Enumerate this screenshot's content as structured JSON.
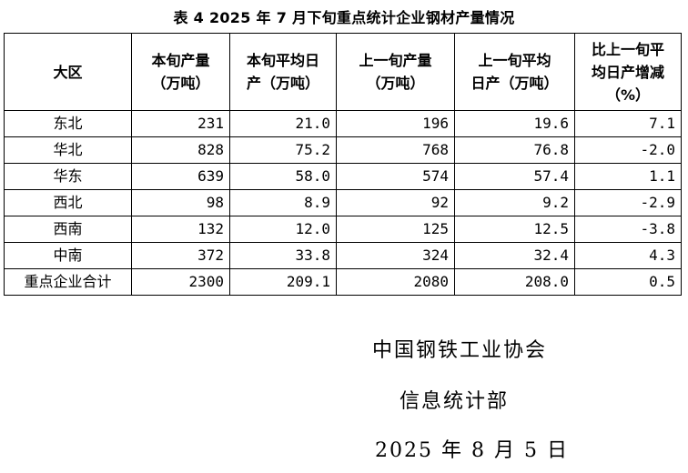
{
  "title": "表 4   2025 年 7 月下旬重点统计企业钢材产量情况",
  "table": {
    "headers": [
      {
        "line1": "大区",
        "line2": ""
      },
      {
        "line1": "本旬产量",
        "line2": "（万吨）"
      },
      {
        "line1": "本旬平均日",
        "line2": "产（万吨）"
      },
      {
        "line1": "上一旬产量",
        "line2": "（万吨）"
      },
      {
        "line1": "上一旬平均",
        "line2": "日产（万吨）"
      },
      {
        "line1": "比上一旬平",
        "line2": "均日产增减",
        "line3": "（%）"
      }
    ],
    "rows": [
      {
        "region": "东北",
        "cur": "231",
        "cur_avg": "21.0",
        "prev": "196",
        "prev_avg": "19.6",
        "change": "7.1"
      },
      {
        "region": "华北",
        "cur": "828",
        "cur_avg": "75.2",
        "prev": "768",
        "prev_avg": "76.8",
        "change": "-2.0"
      },
      {
        "region": "华东",
        "cur": "639",
        "cur_avg": "58.0",
        "prev": "574",
        "prev_avg": "57.4",
        "change": "1.1"
      },
      {
        "region": "西北",
        "cur": "98",
        "cur_avg": "8.9",
        "prev": "92",
        "prev_avg": "9.2",
        "change": "-2.9"
      },
      {
        "region": "西南",
        "cur": "132",
        "cur_avg": "12.0",
        "prev": "125",
        "prev_avg": "12.5",
        "change": "-3.8"
      },
      {
        "region": "中南",
        "cur": "372",
        "cur_avg": "33.8",
        "prev": "324",
        "prev_avg": "32.4",
        "change": "4.3"
      },
      {
        "region": "重点企业合计",
        "cur": "2300",
        "cur_avg": "209.1",
        "prev": "2080",
        "prev_avg": "208.0",
        "change": "0.5"
      }
    ]
  },
  "footer": {
    "org": "中国钢铁工业协会",
    "dept": "信息统计部",
    "date": "2025 年 8 月 5 日"
  }
}
